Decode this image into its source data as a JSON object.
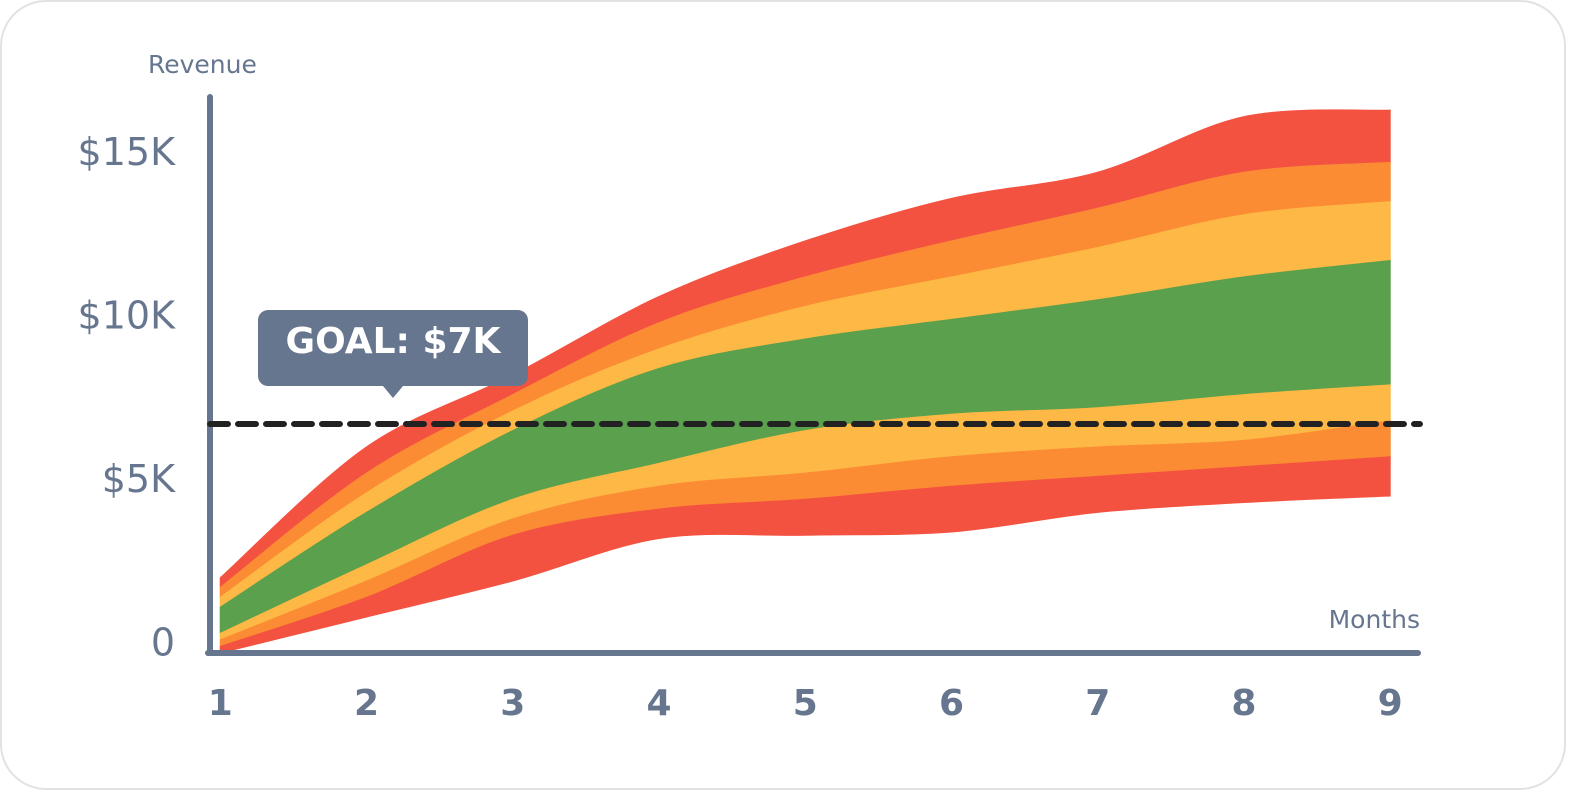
{
  "chart_data": {
    "type": "fan",
    "y_label": "Revenue",
    "x_label": "Months",
    "x": [
      1,
      2,
      3,
      4,
      5,
      6,
      7,
      8,
      9
    ],
    "xlim": [
      0.93,
      9.19
    ],
    "xticks": [
      1,
      2,
      3,
      4,
      5,
      6,
      7,
      8,
      9
    ],
    "ylim": [
      0,
      17000
    ],
    "yticks": [
      0,
      {
        "value": 5000,
        "label": "$5K"
      },
      {
        "value": 10000,
        "label": "$10K"
      },
      {
        "value": 15000,
        "label": "$15K"
      }
    ],
    "goal": {
      "value": 7000,
      "label": "GOAL: $7K"
    },
    "series": [
      {
        "color": "#f45241",
        "high": [
          2300,
          6300,
          8500,
          10900,
          12600,
          13900,
          14700,
          16400,
          16600
        ],
        "low": [
          2000,
          5500,
          7900,
          10100,
          11500,
          12600,
          13600,
          14700,
          15000
        ]
      },
      {
        "color": "#fb8c34",
        "high": [
          2000,
          5500,
          7900,
          10100,
          11500,
          12600,
          13600,
          14700,
          15000
        ],
        "low": [
          1700,
          4900,
          7400,
          9300,
          10600,
          11500,
          12400,
          13400,
          13800
        ]
      },
      {
        "color": "#fdb845",
        "high": [
          1700,
          4900,
          7400,
          9300,
          10600,
          11500,
          12400,
          13400,
          13800
        ],
        "low": [
          1400,
          4300,
          6800,
          8700,
          9600,
          10200,
          10800,
          11500,
          12000
        ]
      },
      {
        "color": "#5ba04d",
        "high": [
          1400,
          4300,
          6800,
          8700,
          9600,
          10200,
          10800,
          11500,
          12000
        ],
        "low": [
          600,
          2700,
          4700,
          5800,
          6800,
          7300,
          7500,
          7900,
          8200
        ]
      },
      {
        "color": "#fdb845",
        "high": [
          600,
          2700,
          4700,
          5800,
          6800,
          7300,
          7500,
          7900,
          8200
        ],
        "low": [
          400,
          2200,
          4100,
          5100,
          5500,
          6000,
          6300,
          6500,
          7100
        ]
      },
      {
        "color": "#fb8c34",
        "high": [
          400,
          2200,
          4100,
          5100,
          5500,
          6000,
          6300,
          6500,
          7100
        ],
        "low": [
          200,
          1700,
          3600,
          4400,
          4700,
          5100,
          5400,
          5700,
          6000
        ]
      },
      {
        "color": "#f45241",
        "high": [
          200,
          1700,
          3600,
          4400,
          4700,
          5100,
          5400,
          5700,
          6000
        ],
        "low": [
          0,
          1100,
          2200,
          3500,
          3600,
          3700,
          4300,
          4600,
          4800
        ]
      }
    ]
  }
}
